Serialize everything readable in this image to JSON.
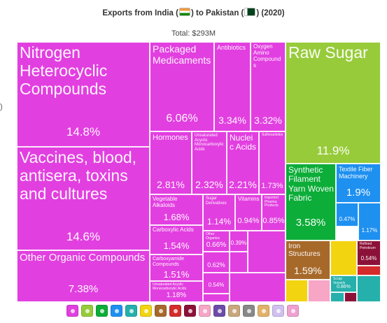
{
  "header": {
    "title_before": "Exports from India (",
    "title_middle": ") to Pakistan (",
    "title_after": ") (2020)",
    "total": "Total: $293M",
    "flags": [
      "india-flag",
      "pakistan-flag"
    ]
  },
  "colors": {
    "chemicals": "#e23fe0",
    "vegetable": "#97cb3a",
    "textiles": "#0cad38",
    "textiles_blue": "#1e90f0",
    "metals": "#a7692a",
    "misc_yellow": "#f2d411",
    "machinery_teal": "#26b0ab",
    "transport_maroon": "#8c1138",
    "minerals_red": "#d52b2b",
    "plastics": "#f7a6c6"
  },
  "chart_data": {
    "type": "treemap",
    "title": "Exports from India to Pakistan (2020)",
    "total": "$293M",
    "items": [
      {
        "name": "Nitrogen Heterocyclic Compounds",
        "share": "14.8%",
        "value": 14.8,
        "group": "chemicals"
      },
      {
        "name": "Vaccines, blood, antisera, toxins and cultures",
        "share": "14.6%",
        "value": 14.6,
        "group": "chemicals"
      },
      {
        "name": "Other Organic Compounds",
        "share": "7.38%",
        "value": 7.38,
        "group": "chemicals"
      },
      {
        "name": "Packaged Medicaments",
        "share": "6.06%",
        "value": 6.06,
        "group": "chemicals"
      },
      {
        "name": "Antibiotics",
        "share": "3.34%",
        "value": 3.34,
        "group": "chemicals"
      },
      {
        "name": "Oxygen Amino Compounds",
        "share": "3.32%",
        "value": 3.32,
        "group": "chemicals"
      },
      {
        "name": "Hormones",
        "share": "2.81%",
        "value": 2.81,
        "group": "chemicals"
      },
      {
        "name": "Unsaturated Acyclic Monocarboxylic Acids",
        "share": "2.32%",
        "value": 2.32,
        "group": "chemicals"
      },
      {
        "name": "Nucleic Acids",
        "share": "2.21%",
        "value": 2.21,
        "group": "chemicals"
      },
      {
        "name": "Sulfonamides",
        "share": "1.73%",
        "value": 1.73,
        "group": "chemicals"
      },
      {
        "name": "Vegetable Alkaloids",
        "share": "1.68%",
        "value": 1.68,
        "group": "chemicals"
      },
      {
        "name": "Sugar Derivatives",
        "share": "1.14%",
        "value": 1.14,
        "group": "chemicals"
      },
      {
        "name": "Vitamins",
        "share": "0.94%",
        "value": 0.94,
        "group": "chemicals"
      },
      {
        "name": "Imported Pharma Products",
        "share": "0.85%",
        "value": 0.85,
        "group": "chemicals"
      },
      {
        "name": "Carboxylic Acids",
        "share": "1.54%",
        "value": 1.54,
        "group": "chemicals"
      },
      {
        "name": "Other Organics",
        "share": "0.66%",
        "value": 0.66,
        "group": "chemicals"
      },
      {
        "name": "",
        "share": "0.39%",
        "value": 0.39,
        "group": "chemicals"
      },
      {
        "name": "Carboxyamide Compounds",
        "share": "1.51%",
        "value": 1.51,
        "group": "chemicals"
      },
      {
        "name": "",
        "share": "0.62%",
        "value": 0.62,
        "group": "chemicals"
      },
      {
        "name": "",
        "share": "0.54%",
        "value": 0.54,
        "group": "chemicals"
      },
      {
        "name": "Unsaturated Acyclic Monocarboxylic Acids",
        "share": "1.18%",
        "value": 1.18,
        "group": "chemicals"
      },
      {
        "name": "Raw Sugar",
        "share": "11.9%",
        "value": 11.9,
        "group": "vegetable"
      },
      {
        "name": "Synthetic Filament Yarn Woven Fabric",
        "share": "3.58%",
        "value": 3.58,
        "group": "textiles"
      },
      {
        "name": "Textile Fiber Machinery",
        "share": "1.9%",
        "value": 1.9,
        "group": "textiles_blue"
      },
      {
        "name": "",
        "share": "0.47%",
        "value": 0.47,
        "group": "textiles_blue"
      },
      {
        "name": "",
        "share": "1.17%",
        "value": 1.17,
        "group": "textiles_blue"
      },
      {
        "name": "Iron Structures",
        "share": "1.59%",
        "value": 1.59,
        "group": "metals"
      },
      {
        "name": "Refined Petroleum",
        "share": "0.54%",
        "value": 0.54,
        "group": "transport_maroon"
      },
      {
        "name": "Scrap Vessels",
        "share": "0.86%",
        "value": 0.86,
        "group": "machinery_teal"
      }
    ]
  },
  "left_edge_text": ")"
}
